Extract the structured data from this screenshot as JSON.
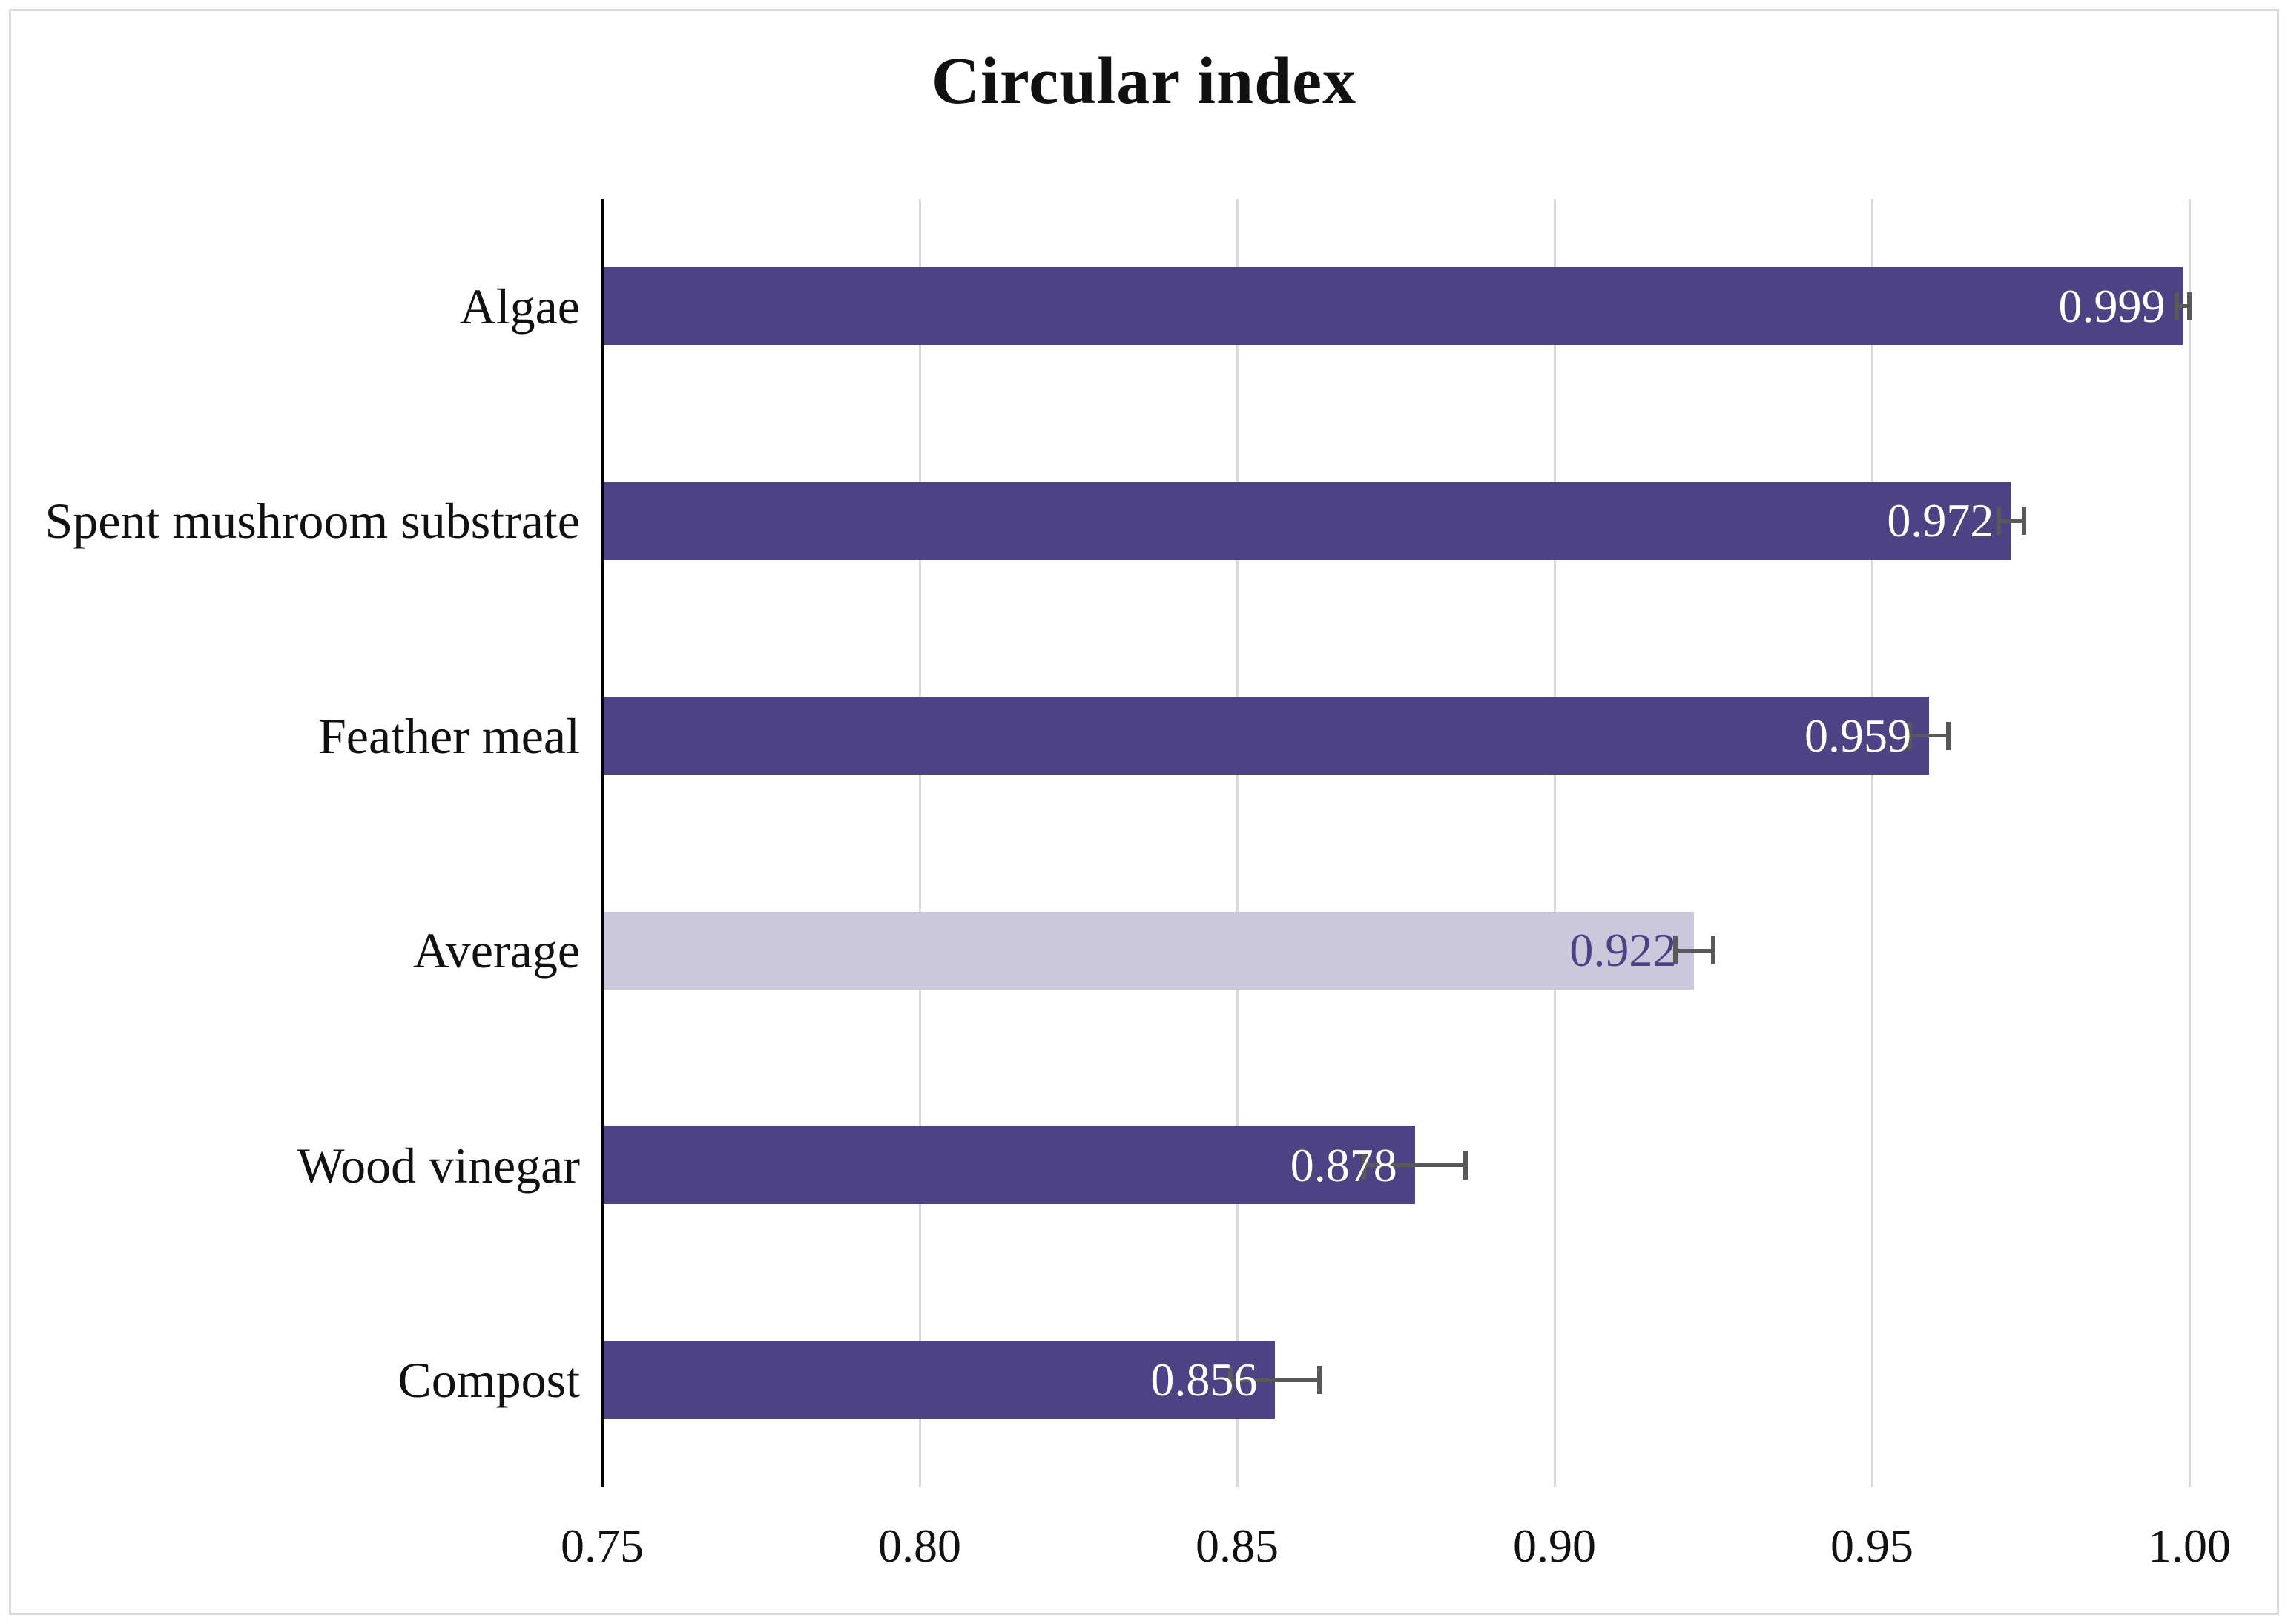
{
  "frame": {
    "background_color": "#ffffff",
    "border_color": "#d9d9d9"
  },
  "chart_data": {
    "type": "bar",
    "orientation": "horizontal",
    "title": "Circular index",
    "xlabel": "",
    "ylabel": "",
    "categories": [
      "Algae",
      "Spent mushroom substrate",
      "Feather meal",
      "Average",
      "Wood vinegar",
      "Compost"
    ],
    "values": [
      0.999,
      0.972,
      0.959,
      0.922,
      0.878,
      0.856
    ],
    "value_labels": [
      "0.999",
      "0.972",
      "0.959",
      "0.922",
      "0.878",
      "0.856"
    ],
    "errors": [
      0.001,
      0.002,
      0.003,
      0.003,
      0.008,
      0.007
    ],
    "bar_colors": [
      "#4d4284",
      "#4d4284",
      "#4d4284",
      "#cbc8dc",
      "#4d4284",
      "#4d4284"
    ],
    "value_label_colors": [
      "#ffffff",
      "#ffffff",
      "#ffffff",
      "#4a4187",
      "#ffffff",
      "#ffffff"
    ],
    "xlim": [
      0.75,
      1.0
    ],
    "x_ticks": [
      "0.75",
      "0.80",
      "0.85",
      "0.90",
      "0.95",
      "1.00"
    ],
    "grid": true,
    "legend": false,
    "gridline_color": "#d9d9d9",
    "axis_line_color": "#000000",
    "error_bar_color": "#595959"
  }
}
